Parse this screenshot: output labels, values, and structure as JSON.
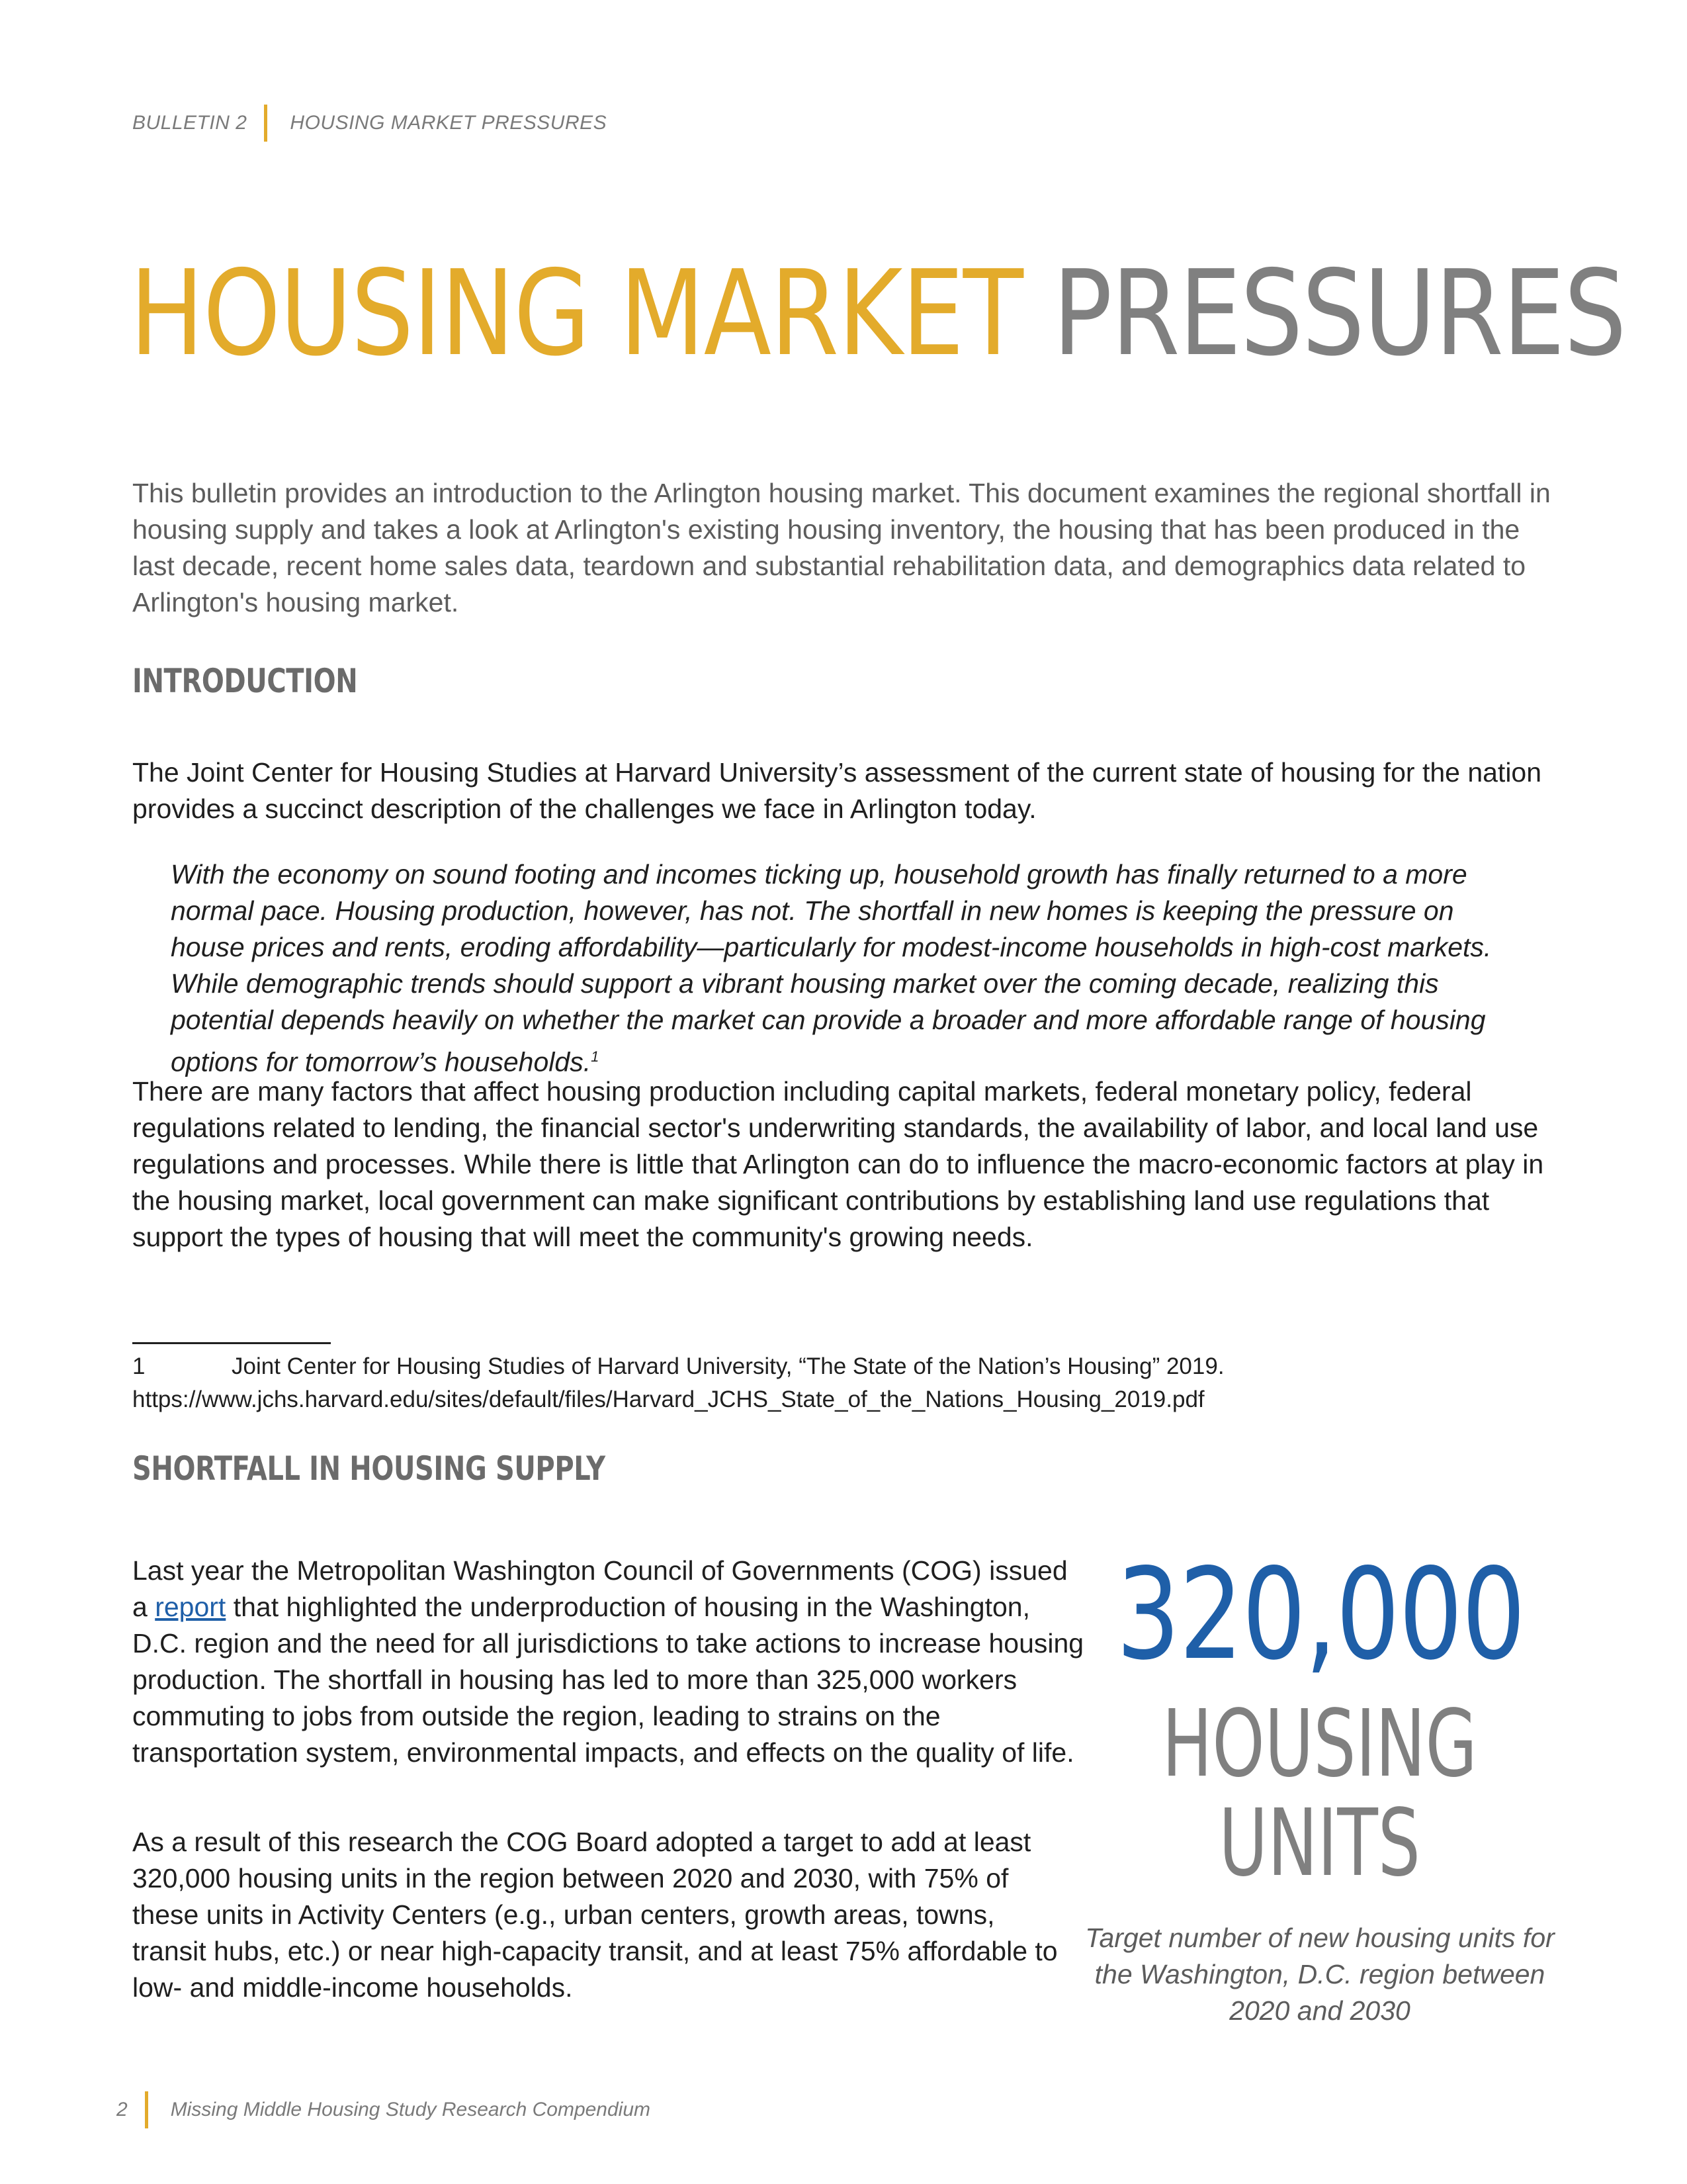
{
  "header": {
    "bulletin": "BULLETIN 2",
    "section": "HOUSING MARKET PRESSURES"
  },
  "title": {
    "part1": "HOUSING MARKET",
    "part2": "PRESSURES"
  },
  "intro": "This bulletin provides an introduction to the Arlington housing market. This document examines the regional shortfall in housing supply and takes a look at Arlington's existing housing inventory, the housing that has been produced in the last decade, recent home sales data, teardown and substantial rehabilitation data, and demographics data related to Arlington's housing market.",
  "introduction": {
    "heading": "INTRODUCTION",
    "p1": "The Joint Center for Housing Studies at Harvard University’s assessment of the current state of housing for the nation provides a succinct description of the challenges we face in Arlington today.",
    "quote": "With the economy on sound footing and incomes ticking up, household growth has finally returned to a more normal pace. Housing production, however, has not. The shortfall in new homes is keeping the pressure on house prices and rents, eroding affordability—particularly for modest-income households in high-cost markets. While demographic trends should support a vibrant housing market over the coming decade, realizing this potential depends heavily on whether the market can provide a broader and more affordable range of housing options for tomorrow’s households.",
    "quote_ref": "1",
    "p2": "There are many factors that affect housing production including capital markets, federal monetary policy, federal regulations related to lending, the financial sector's underwriting standards, the availability of labor, and local land use regulations and processes. While there is little that Arlington can do to influence the macro-economic factors at play in the housing market, local government can make significant contributions by establishing land use regulations that support the types of housing that will meet the community's growing needs."
  },
  "footnote": {
    "number": "1",
    "text": "Joint Center for Housing Studies of Harvard University, “The State of the Nation’s Housing” 2019.",
    "url": "https://www.jchs.harvard.edu/sites/default/files/Harvard_JCHS_State_of_the_Nations_Housing_2019.pdf"
  },
  "shortfall": {
    "heading": "SHORTFALL IN HOUSING SUPPLY",
    "p1_before": "Last year the Metropolitan Washington Council of Governments (COG) issued a ",
    "p1_link": "report",
    "p1_after": " that highlighted the underproduction of housing in the Washington, D.C. region and the need for all jurisdictions to take actions to increase housing production. The shortfall in housing has led to more than 325,000 workers commuting to jobs from outside the region, leading to strains on the transportation system, environmental impacts, and effects on the quality of life.",
    "p2": "As a result of this research the COG Board adopted a target to add at least 320,000 housing units in the region between 2020 and 2030, with 75% of these units in Activity Centers (e.g., urban centers, growth areas, towns, transit hubs, etc.) or near high-capacity transit, and at least 75% affordable to low- and middle-income households."
  },
  "stat": {
    "number": "320,000",
    "label_line1": "HOUSING",
    "label_line2": "UNITS",
    "caption": "Target number of new housing units for the Washington, D.C. region between 2020 and 2030"
  },
  "footer": {
    "page": "2",
    "publication": "Missing Middle Housing Study Research Compendium"
  },
  "colors": {
    "gold": "#e3ab2b",
    "gray": "#808080",
    "blue": "#1f5fa8"
  }
}
